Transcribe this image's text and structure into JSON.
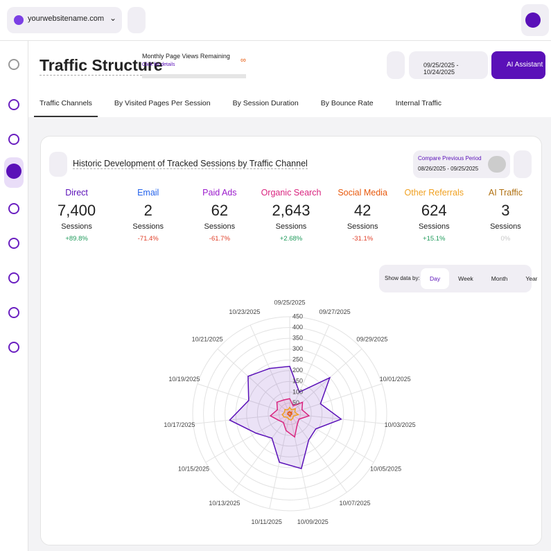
{
  "topbar": {
    "site": "yourwebsitename.com"
  },
  "header": {
    "title": "Traffic Structure",
    "quota_label": "Monthly Page Views Remaining",
    "quota_link": "Click for details",
    "quota_value": "∞",
    "date_range": "09/25/2025 - 10/24/2025",
    "assistant": "AI Assistant"
  },
  "tabs": [
    "Traffic Channels",
    "By Visited Pages Per Session",
    "By Session Duration",
    "By Bounce Rate",
    "Internal Traffic"
  ],
  "card": {
    "title": "Historic Development of Tracked Sessions by Traffic Channel",
    "compare_label": "Compare Previous Period",
    "compare_range": "08/26/2025 - 09/25/2025",
    "stats": [
      {
        "name": "Direct",
        "color": "#5a10b8",
        "value": "7,400",
        "unit": "Sessions",
        "change": "+89.8%",
        "change_color": "#1e9a5a"
      },
      {
        "name": "Email",
        "color": "#2563eb",
        "value": "2",
        "unit": "Sessions",
        "change": "-71.4%",
        "change_color": "#e0402a"
      },
      {
        "name": "Paid Ads",
        "color": "#9b1bcc",
        "value": "62",
        "unit": "Sessions",
        "change": "-61.7%",
        "change_color": "#e0402a"
      },
      {
        "name": "Organic Search",
        "color": "#d9247f",
        "value": "2,643",
        "unit": "Sessions",
        "change": "+2.68%",
        "change_color": "#1e9a5a"
      },
      {
        "name": "Social Media",
        "color": "#e8590c",
        "value": "42",
        "unit": "Sessions",
        "change": "-31.1%",
        "change_color": "#e0402a"
      },
      {
        "name": "Other Referrals",
        "color": "#f0a020",
        "value": "624",
        "unit": "Sessions",
        "change": "+15.1%",
        "change_color": "#1e9a5a"
      },
      {
        "name": "AI Traffic",
        "color": "#b07010",
        "value": "3",
        "unit": "Sessions",
        "change": "0%",
        "change_color": "#c8c8c8"
      }
    ],
    "show_by_label": "Show data by:",
    "show_by": [
      "Day",
      "Week",
      "Month",
      "Year"
    ]
  },
  "chart_data": {
    "type": "radar",
    "categories": [
      "09/25/2025",
      "09/27/2025",
      "09/29/2025",
      "10/01/2025",
      "10/03/2025",
      "10/05/2025",
      "10/07/2025",
      "10/09/2025",
      "10/11/2025",
      "10/13/2025",
      "10/15/2025",
      "10/17/2025",
      "10/19/2025",
      "10/21/2025",
      "10/23/2025"
    ],
    "ylim": [
      0,
      450
    ],
    "yticks": [
      50,
      100,
      150,
      200,
      250,
      300,
      350,
      400,
      450
    ],
    "grid": true,
    "series": [
      {
        "color": "#5a10b8",
        "values": [
          220,
          110,
          250,
          150,
          240,
          140,
          150,
          260,
          230,
          140,
          180,
          280,
          200,
          260,
          230
        ]
      },
      {
        "color": "#d9247f",
        "values": [
          70,
          40,
          80,
          60,
          90,
          50,
          60,
          110,
          80,
          50,
          60,
          90,
          60,
          80,
          70
        ]
      },
      {
        "color": "#f0a020",
        "values": [
          30,
          20,
          35,
          25,
          40,
          20,
          25,
          30,
          25,
          20,
          30,
          35,
          25,
          30,
          20
        ]
      },
      {
        "color": "#e8590c",
        "values": [
          10,
          5,
          12,
          8,
          10,
          6,
          8,
          12,
          10,
          6,
          8,
          10,
          8,
          10,
          8
        ]
      }
    ]
  }
}
